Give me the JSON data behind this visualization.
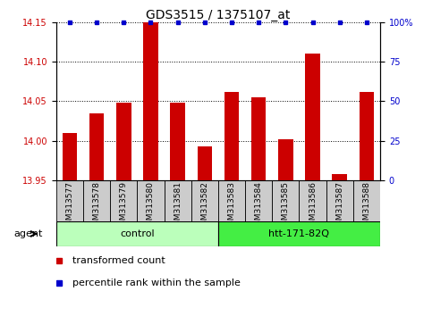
{
  "title": "GDS3515 / 1375107_at",
  "categories": [
    "GSM313577",
    "GSM313578",
    "GSM313579",
    "GSM313580",
    "GSM313581",
    "GSM313582",
    "GSM313583",
    "GSM313584",
    "GSM313585",
    "GSM313586",
    "GSM313587",
    "GSM313588"
  ],
  "bar_values": [
    14.01,
    14.035,
    14.048,
    14.15,
    14.048,
    13.993,
    14.062,
    14.055,
    14.002,
    14.11,
    13.958,
    14.062
  ],
  "bar_color": "#cc0000",
  "dot_color": "#0000cc",
  "ylim_left": [
    13.95,
    14.15
  ],
  "ylim_right": [
    0,
    100
  ],
  "yticks_left": [
    13.95,
    14.0,
    14.05,
    14.1,
    14.15
  ],
  "yticks_right": [
    0,
    25,
    50,
    75,
    100
  ],
  "ytick_labels_right": [
    "0",
    "25",
    "50",
    "75",
    "100%"
  ],
  "groups": [
    {
      "label": "control",
      "start": 0,
      "end": 5,
      "color": "#bbffbb"
    },
    {
      "label": "htt-171-82Q",
      "start": 6,
      "end": 11,
      "color": "#44ee44"
    }
  ],
  "agent_label": "agent",
  "legend": [
    {
      "label": "transformed count",
      "color": "#cc0000"
    },
    {
      "label": "percentile rank within the sample",
      "color": "#0000cc"
    }
  ],
  "bg_color": "#ffffff",
  "bar_width": 0.55,
  "sample_bg_color": "#cccccc",
  "title_fontsize": 10,
  "axis_fontsize": 8,
  "tick_fontsize": 7,
  "legend_fontsize": 8
}
